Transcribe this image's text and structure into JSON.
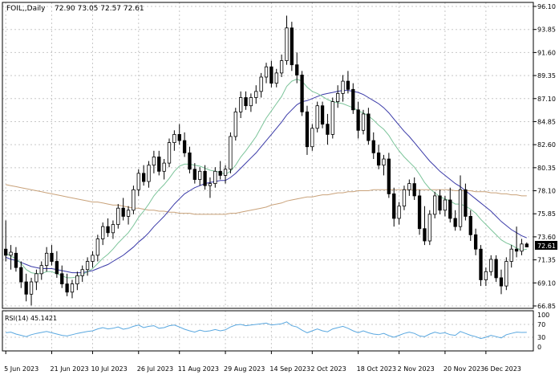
{
  "header": {
    "symbol": "FOIL,,Daily",
    "ohlc": "72.90 73.05 72.57 72.61"
  },
  "rsi_label": "RSI(14) 45.1421",
  "price_badge": "72.61",
  "colors": {
    "background": "#ffffff",
    "frame": "#000000",
    "grid": "#c8c8c8",
    "candle": "#000000",
    "ma_fast": "#7cc49a",
    "ma_mid": "#3a3aa8",
    "ma_slow": "#c9a27a",
    "rsi": "#5aa8e0"
  },
  "chart_data": [
    {
      "type": "candlestick",
      "title": "",
      "y_ticks": [
        "96.10",
        "93.85",
        "91.60",
        "89.35",
        "87.10",
        "84.85",
        "82.60",
        "80.35",
        "78.10",
        "75.85",
        "73.60",
        "71.35",
        "69.10",
        "66.85"
      ],
      "x_ticks": [
        "5 Jun 2023",
        "21 Jun 2023",
        "10 Jul 2023",
        "26 Jul 2023",
        "11 Aug 2023",
        "29 Aug 2023",
        "14 Sep 2023",
        "2 Oct 2023",
        "18 Oct 2023",
        "2 Nov 2023",
        "20 Nov 2023",
        "6 Dec 2023"
      ],
      "ylim": [
        66.85,
        96.1
      ],
      "grid": true,
      "last_price": 72.61,
      "candles": [
        {
          "o": 72.4,
          "h": 75.2,
          "l": 71.2,
          "c": 71.8
        },
        {
          "o": 71.8,
          "h": 72.8,
          "l": 70.4,
          "c": 72.1
        },
        {
          "o": 72.0,
          "h": 72.6,
          "l": 70.2,
          "c": 70.6
        },
        {
          "o": 70.6,
          "h": 71.2,
          "l": 68.6,
          "c": 69.2
        },
        {
          "o": 69.2,
          "h": 70.0,
          "l": 67.3,
          "c": 68.0
        },
        {
          "o": 68.0,
          "h": 69.6,
          "l": 66.9,
          "c": 69.2
        },
        {
          "o": 69.2,
          "h": 70.4,
          "l": 68.4,
          "c": 70.0
        },
        {
          "o": 70.0,
          "h": 71.2,
          "l": 69.4,
          "c": 70.8
        },
        {
          "o": 70.8,
          "h": 72.6,
          "l": 70.2,
          "c": 72.0
        },
        {
          "o": 72.0,
          "h": 72.8,
          "l": 70.8,
          "c": 71.2
        },
        {
          "o": 71.2,
          "h": 72.2,
          "l": 69.6,
          "c": 70.0
        },
        {
          "o": 70.0,
          "h": 70.8,
          "l": 68.6,
          "c": 69.0
        },
        {
          "o": 69.0,
          "h": 70.0,
          "l": 67.8,
          "c": 68.2
        },
        {
          "o": 68.2,
          "h": 69.4,
          "l": 67.6,
          "c": 69.0
        },
        {
          "o": 69.0,
          "h": 70.2,
          "l": 68.4,
          "c": 69.8
        },
        {
          "o": 69.8,
          "h": 70.8,
          "l": 69.2,
          "c": 70.4
        },
        {
          "o": 70.4,
          "h": 71.6,
          "l": 69.8,
          "c": 71.2
        },
        {
          "o": 71.2,
          "h": 72.2,
          "l": 70.6,
          "c": 71.8
        },
        {
          "o": 71.8,
          "h": 73.8,
          "l": 71.2,
          "c": 73.4
        },
        {
          "o": 73.4,
          "h": 75.0,
          "l": 72.8,
          "c": 74.6
        },
        {
          "o": 74.6,
          "h": 75.4,
          "l": 73.6,
          "c": 74.0
        },
        {
          "o": 74.0,
          "h": 75.2,
          "l": 73.4,
          "c": 74.8
        },
        {
          "o": 74.8,
          "h": 76.8,
          "l": 74.4,
          "c": 76.4
        },
        {
          "o": 76.4,
          "h": 77.4,
          "l": 75.2,
          "c": 75.6
        },
        {
          "o": 75.6,
          "h": 76.6,
          "l": 74.8,
          "c": 76.2
        },
        {
          "o": 76.2,
          "h": 78.6,
          "l": 75.8,
          "c": 78.2
        },
        {
          "o": 78.2,
          "h": 80.2,
          "l": 77.6,
          "c": 79.8
        },
        {
          "o": 79.8,
          "h": 80.6,
          "l": 78.6,
          "c": 79.0
        },
        {
          "o": 79.0,
          "h": 81.0,
          "l": 78.4,
          "c": 80.6
        },
        {
          "o": 80.6,
          "h": 82.0,
          "l": 79.8,
          "c": 81.4
        },
        {
          "o": 81.4,
          "h": 82.0,
          "l": 79.6,
          "c": 80.0
        },
        {
          "o": 80.0,
          "h": 81.2,
          "l": 79.2,
          "c": 80.8
        },
        {
          "o": 80.8,
          "h": 83.2,
          "l": 80.4,
          "c": 82.8
        },
        {
          "o": 82.8,
          "h": 84.0,
          "l": 82.0,
          "c": 83.6
        },
        {
          "o": 83.6,
          "h": 84.6,
          "l": 82.6,
          "c": 83.0
        },
        {
          "o": 83.0,
          "h": 83.8,
          "l": 81.4,
          "c": 81.8
        },
        {
          "o": 81.8,
          "h": 82.4,
          "l": 79.8,
          "c": 80.2
        },
        {
          "o": 80.2,
          "h": 80.8,
          "l": 78.8,
          "c": 79.2
        },
        {
          "o": 79.2,
          "h": 80.4,
          "l": 78.6,
          "c": 80.0
        },
        {
          "o": 80.0,
          "h": 80.6,
          "l": 78.2,
          "c": 78.6
        },
        {
          "o": 78.6,
          "h": 79.4,
          "l": 77.4,
          "c": 78.8
        },
        {
          "o": 78.8,
          "h": 80.4,
          "l": 78.4,
          "c": 80.0
        },
        {
          "o": 80.0,
          "h": 81.0,
          "l": 79.2,
          "c": 79.6
        },
        {
          "o": 79.6,
          "h": 80.6,
          "l": 78.8,
          "c": 80.2
        },
        {
          "o": 80.2,
          "h": 83.8,
          "l": 79.8,
          "c": 83.4
        },
        {
          "o": 83.4,
          "h": 86.2,
          "l": 83.0,
          "c": 85.8
        },
        {
          "o": 85.8,
          "h": 87.8,
          "l": 85.2,
          "c": 87.2
        },
        {
          "o": 87.2,
          "h": 87.8,
          "l": 86.0,
          "c": 86.4
        },
        {
          "o": 86.4,
          "h": 87.6,
          "l": 85.8,
          "c": 87.2
        },
        {
          "o": 87.2,
          "h": 88.4,
          "l": 86.6,
          "c": 87.8
        },
        {
          "o": 87.8,
          "h": 89.6,
          "l": 87.2,
          "c": 89.2
        },
        {
          "o": 89.2,
          "h": 90.6,
          "l": 88.6,
          "c": 90.2
        },
        {
          "o": 90.2,
          "h": 90.8,
          "l": 88.2,
          "c": 88.6
        },
        {
          "o": 88.6,
          "h": 90.0,
          "l": 88.2,
          "c": 89.6
        },
        {
          "o": 89.6,
          "h": 91.4,
          "l": 89.2,
          "c": 90.8
        },
        {
          "o": 90.8,
          "h": 95.2,
          "l": 90.4,
          "c": 94.0
        },
        {
          "o": 94.0,
          "h": 94.6,
          "l": 89.8,
          "c": 90.4
        },
        {
          "o": 90.4,
          "h": 91.6,
          "l": 88.6,
          "c": 89.4
        },
        {
          "o": 89.4,
          "h": 89.8,
          "l": 85.4,
          "c": 85.8
        },
        {
          "o": 85.8,
          "h": 86.4,
          "l": 81.6,
          "c": 82.4
        },
        {
          "o": 82.4,
          "h": 84.6,
          "l": 82.0,
          "c": 84.2
        },
        {
          "o": 84.2,
          "h": 86.8,
          "l": 83.8,
          "c": 86.4
        },
        {
          "o": 86.4,
          "h": 86.8,
          "l": 84.2,
          "c": 84.6
        },
        {
          "o": 84.6,
          "h": 85.6,
          "l": 82.6,
          "c": 83.6
        },
        {
          "o": 83.6,
          "h": 87.2,
          "l": 83.2,
          "c": 86.8
        },
        {
          "o": 86.8,
          "h": 88.4,
          "l": 86.2,
          "c": 87.6
        },
        {
          "o": 87.6,
          "h": 89.4,
          "l": 86.8,
          "c": 88.8
        },
        {
          "o": 88.8,
          "h": 89.8,
          "l": 87.6,
          "c": 88.0
        },
        {
          "o": 88.0,
          "h": 88.6,
          "l": 85.6,
          "c": 86.0
        },
        {
          "o": 86.0,
          "h": 86.8,
          "l": 83.2,
          "c": 84.0
        },
        {
          "o": 84.0,
          "h": 86.0,
          "l": 83.6,
          "c": 85.6
        },
        {
          "o": 85.6,
          "h": 86.2,
          "l": 82.6,
          "c": 83.0
        },
        {
          "o": 83.0,
          "h": 83.8,
          "l": 81.2,
          "c": 81.8
        },
        {
          "o": 81.8,
          "h": 82.6,
          "l": 80.2,
          "c": 80.6
        },
        {
          "o": 80.6,
          "h": 81.6,
          "l": 79.6,
          "c": 81.2
        },
        {
          "o": 81.2,
          "h": 81.8,
          "l": 77.4,
          "c": 77.8
        },
        {
          "o": 77.8,
          "h": 78.4,
          "l": 74.6,
          "c": 75.4
        },
        {
          "o": 75.4,
          "h": 77.0,
          "l": 74.8,
          "c": 76.6
        },
        {
          "o": 76.6,
          "h": 78.6,
          "l": 76.2,
          "c": 78.2
        },
        {
          "o": 78.2,
          "h": 79.2,
          "l": 77.6,
          "c": 78.8
        },
        {
          "o": 78.8,
          "h": 79.4,
          "l": 77.2,
          "c": 77.6
        },
        {
          "o": 77.6,
          "h": 78.2,
          "l": 73.8,
          "c": 74.4
        },
        {
          "o": 74.4,
          "h": 76.6,
          "l": 72.8,
          "c": 73.2
        },
        {
          "o": 73.2,
          "h": 76.2,
          "l": 72.8,
          "c": 75.8
        },
        {
          "o": 75.8,
          "h": 78.0,
          "l": 75.4,
          "c": 77.6
        },
        {
          "o": 77.6,
          "h": 78.2,
          "l": 75.8,
          "c": 76.2
        },
        {
          "o": 76.2,
          "h": 77.6,
          "l": 75.6,
          "c": 77.2
        },
        {
          "o": 77.2,
          "h": 78.4,
          "l": 75.0,
          "c": 75.4
        },
        {
          "o": 75.4,
          "h": 76.2,
          "l": 74.2,
          "c": 74.6
        },
        {
          "o": 74.6,
          "h": 79.6,
          "l": 74.2,
          "c": 78.2
        },
        {
          "o": 78.2,
          "h": 78.8,
          "l": 75.2,
          "c": 75.6
        },
        {
          "o": 75.6,
          "h": 76.2,
          "l": 73.2,
          "c": 73.8
        },
        {
          "o": 73.8,
          "h": 74.4,
          "l": 71.8,
          "c": 72.4
        },
        {
          "o": 72.4,
          "h": 72.8,
          "l": 68.8,
          "c": 69.4
        },
        {
          "o": 69.4,
          "h": 70.6,
          "l": 68.8,
          "c": 70.2
        },
        {
          "o": 70.2,
          "h": 71.8,
          "l": 69.8,
          "c": 71.4
        },
        {
          "o": 71.4,
          "h": 71.8,
          "l": 69.2,
          "c": 69.6
        },
        {
          "o": 69.6,
          "h": 70.4,
          "l": 68.0,
          "c": 68.8
        },
        {
          "o": 68.8,
          "h": 71.6,
          "l": 68.4,
          "c": 71.2
        },
        {
          "o": 71.2,
          "h": 72.8,
          "l": 70.6,
          "c": 72.4
        },
        {
          "o": 72.4,
          "h": 74.6,
          "l": 71.6,
          "c": 72.2
        },
        {
          "o": 72.2,
          "h": 73.4,
          "l": 71.8,
          "c": 72.9
        },
        {
          "o": 72.9,
          "h": 73.05,
          "l": 72.57,
          "c": 72.61
        }
      ],
      "ma_fast": [
        72.0,
        71.7,
        71.5,
        71.0,
        70.4,
        70.1,
        70.0,
        70.0,
        70.2,
        70.2,
        70.0,
        69.8,
        69.6,
        69.6,
        69.7,
        69.9,
        70.2,
        70.5,
        71.0,
        71.5,
        71.9,
        72.4,
        73.0,
        73.5,
        74.0,
        74.7,
        75.5,
        76.1,
        76.8,
        77.6,
        78.2,
        78.7,
        79.3,
        80.0,
        80.5,
        80.7,
        80.7,
        80.6,
        80.5,
        80.3,
        80.1,
        80.0,
        79.9,
        79.7,
        80.0,
        80.6,
        81.4,
        82.0,
        82.7,
        83.4,
        84.3,
        85.2,
        85.9,
        86.6,
        87.3,
        88.3,
        88.8,
        89.0,
        88.8,
        88.2,
        87.8,
        87.6,
        87.3,
        87.0,
        86.8,
        86.7,
        86.6,
        86.4,
        86.2,
        85.9,
        85.7,
        85.4,
        85.0,
        84.5,
        84.1,
        83.5,
        82.7,
        82.0,
        81.4,
        80.9,
        80.4,
        79.7,
        78.9,
        78.3,
        77.9,
        77.5,
        77.3,
        77.1,
        76.8,
        76.8,
        76.6,
        76.3,
        75.9,
        75.3,
        74.8,
        74.3,
        73.8,
        73.3,
        73.0,
        72.8,
        72.5,
        72.3,
        72.4
      ],
      "ma_mid": [
        71.6,
        71.4,
        71.3,
        71.1,
        70.9,
        70.7,
        70.6,
        70.5,
        70.5,
        70.5,
        70.4,
        70.3,
        70.2,
        70.1,
        70.1,
        70.1,
        70.2,
        70.3,
        70.5,
        70.7,
        70.9,
        71.2,
        71.5,
        71.8,
        72.2,
        72.6,
        73.1,
        73.5,
        74.0,
        74.6,
        75.1,
        75.6,
        76.2,
        76.8,
        77.3,
        77.8,
        78.1,
        78.4,
        78.6,
        78.8,
        78.9,
        79.0,
        79.1,
        79.1,
        79.4,
        79.8,
        80.3,
        80.8,
        81.3,
        81.8,
        82.4,
        83.0,
        83.6,
        84.2,
        84.8,
        85.5,
        86.0,
        86.5,
        86.8,
        86.9,
        87.1,
        87.3,
        87.5,
        87.6,
        87.7,
        87.8,
        87.9,
        87.9,
        87.8,
        87.7,
        87.5,
        87.2,
        86.9,
        86.6,
        86.2,
        85.7,
        85.1,
        84.5,
        83.9,
        83.4,
        82.8,
        82.2,
        81.6,
        81.0,
        80.5,
        80.0,
        79.6,
        79.2,
        78.8,
        78.5,
        78.1,
        77.7,
        77.3,
        76.9,
        76.5,
        76.1,
        75.6,
        75.1,
        74.7,
        74.3,
        74.0,
        73.7,
        73.5
      ],
      "ma_slow": [
        78.7,
        78.6,
        78.5,
        78.4,
        78.3,
        78.2,
        78.1,
        78.0,
        77.9,
        77.8,
        77.7,
        77.6,
        77.5,
        77.4,
        77.3,
        77.2,
        77.1,
        77.0,
        77.0,
        76.9,
        76.8,
        76.7,
        76.7,
        76.6,
        76.5,
        76.4,
        76.4,
        76.3,
        76.2,
        76.2,
        76.1,
        76.1,
        76.0,
        76.0,
        75.9,
        75.9,
        75.9,
        75.8,
        75.8,
        75.8,
        75.8,
        75.8,
        75.8,
        75.8,
        75.9,
        75.9,
        76.0,
        76.1,
        76.2,
        76.3,
        76.4,
        76.5,
        76.7,
        76.8,
        76.9,
        77.1,
        77.2,
        77.3,
        77.4,
        77.5,
        77.5,
        77.6,
        77.7,
        77.7,
        77.8,
        77.9,
        77.9,
        78.0,
        78.0,
        78.1,
        78.1,
        78.1,
        78.2,
        78.2,
        78.2,
        78.2,
        78.2,
        78.2,
        78.2,
        78.2,
        78.2,
        78.2,
        78.2,
        78.2,
        78.2,
        78.2,
        78.2,
        78.2,
        78.1,
        78.1,
        78.1,
        78.1,
        78.0,
        78.0,
        78.0,
        77.9,
        77.9,
        77.8,
        77.8,
        77.7,
        77.7,
        77.6,
        77.6
      ]
    },
    {
      "type": "line",
      "title": "RSI(14) 45.1421",
      "y_ticks": [
        "100",
        "70",
        "30",
        "0"
      ],
      "ylim": [
        0,
        100
      ],
      "values": [
        44,
        46,
        40,
        36,
        32,
        38,
        42,
        45,
        48,
        44,
        40,
        36,
        34,
        38,
        42,
        45,
        48,
        50,
        56,
        60,
        56,
        58,
        62,
        55,
        58,
        64,
        68,
        60,
        64,
        66,
        58,
        60,
        66,
        68,
        62,
        55,
        50,
        46,
        52,
        48,
        50,
        54,
        50,
        53,
        62,
        68,
        70,
        66,
        68,
        70,
        72,
        74,
        68,
        70,
        72,
        78,
        66,
        62,
        52,
        44,
        50,
        56,
        50,
        47,
        56,
        60,
        64,
        58,
        50,
        44,
        50,
        44,
        40,
        38,
        42,
        35,
        30,
        36,
        42,
        46,
        42,
        34,
        32,
        40,
        46,
        42,
        44,
        38,
        36,
        48,
        42,
        36,
        32,
        26,
        30,
        36,
        32,
        28,
        38,
        42,
        46,
        45,
        45.1421
      ]
    }
  ]
}
